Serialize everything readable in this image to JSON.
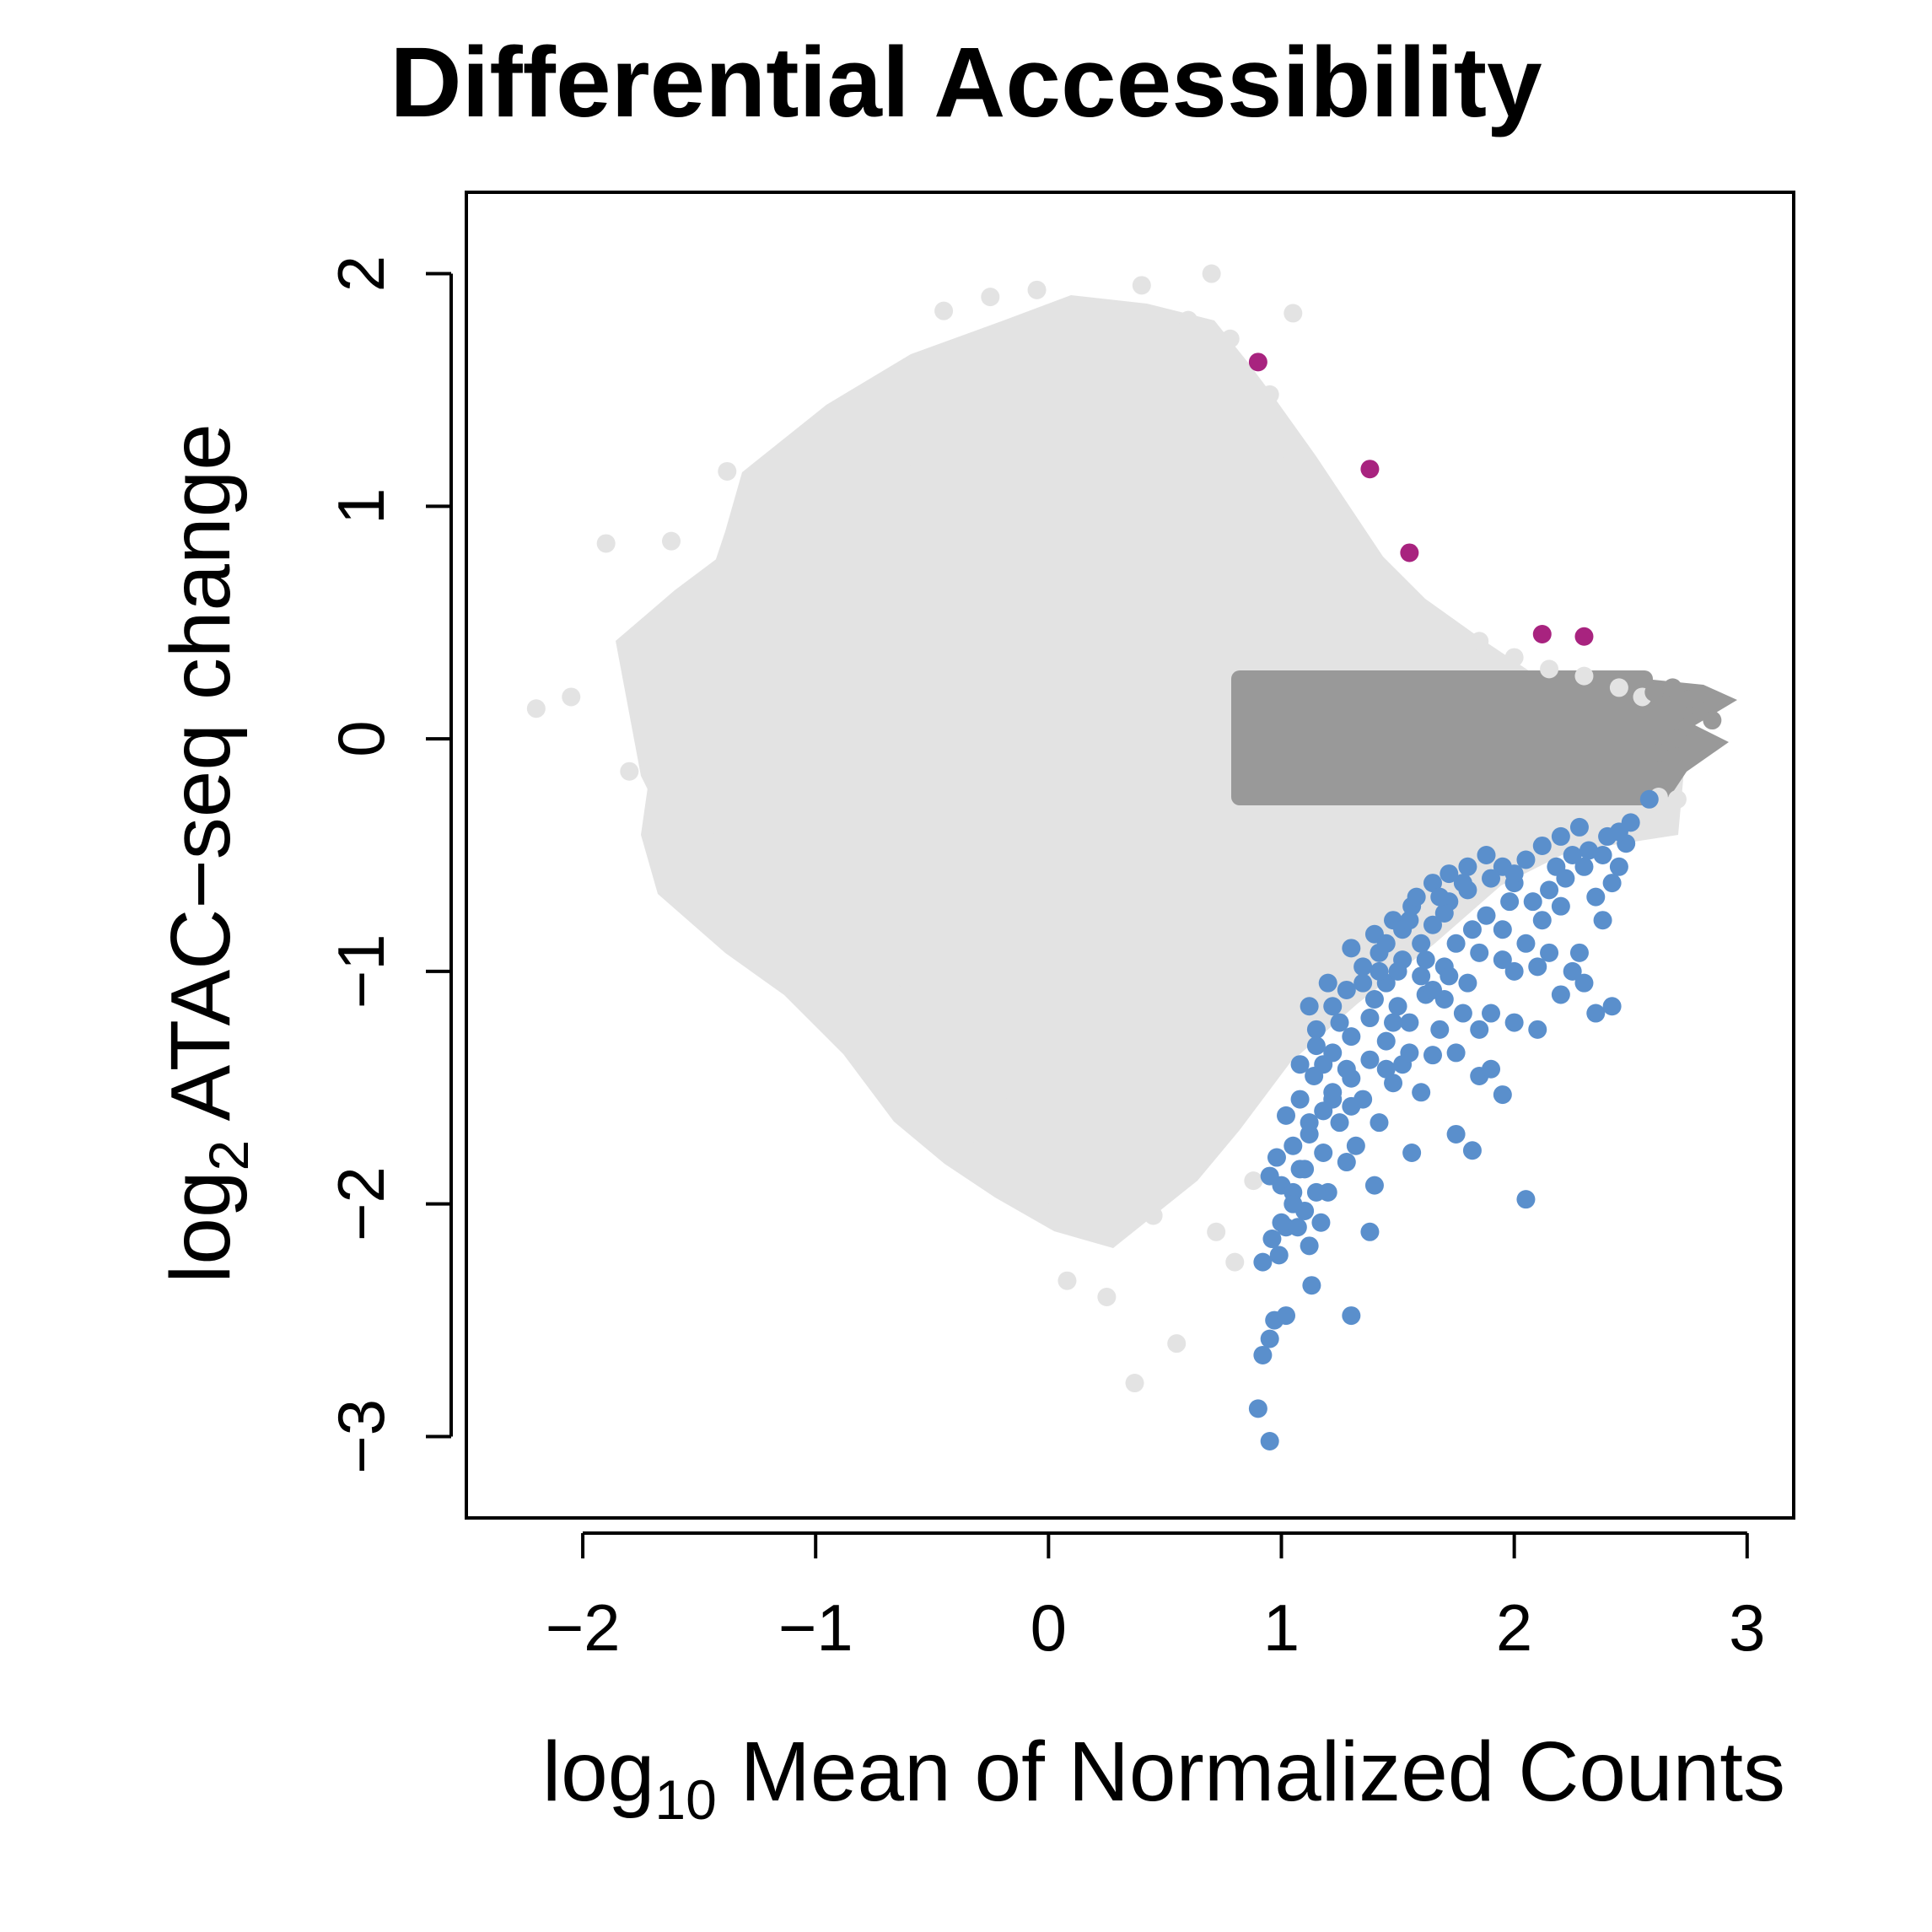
{
  "chart_data": {
    "type": "scatter",
    "title": "Differential Accessibility",
    "xlabel_prefix": "log",
    "xlabel_sub": "10",
    "xlabel_rest": " Mean of Normalized Counts",
    "ylabel_prefix": "log",
    "ylabel_sub": "2",
    "ylabel_rest": " ATAC−seq change",
    "xlim": [
      -2.5,
      3.2
    ],
    "ylim": [
      -3.35,
      2.35
    ],
    "xticks": [
      -2,
      -1,
      0,
      1,
      2,
      3
    ],
    "xtick_labels": [
      "−2",
      "−1",
      "0",
      "1",
      "2",
      "3"
    ],
    "yticks": [
      -3,
      -2,
      -1,
      0,
      1,
      2
    ],
    "ytick_labels": [
      "−3",
      "−2",
      "−1",
      "0",
      "1",
      "2"
    ],
    "grid": false,
    "colors": {
      "not_significant": "#e3e3e3",
      "dense_center": "#999999",
      "increased": "#a8237f",
      "decreased": "#5a8fcc"
    },
    "series": [
      {
        "key": "not_significant",
        "points": [
          [
            -2.2,
            0.13
          ],
          [
            -2.05,
            0.18
          ],
          [
            -1.9,
            0.84
          ],
          [
            -1.8,
            -0.14
          ],
          [
            -1.7,
            0.05
          ],
          [
            -1.62,
            0.85
          ],
          [
            -1.55,
            -0.2
          ],
          [
            -1.5,
            0.62
          ],
          [
            -1.45,
            -0.37
          ],
          [
            -1.38,
            1.15
          ],
          [
            -1.35,
            -0.48
          ],
          [
            -1.25,
            0.9
          ],
          [
            -1.2,
            -0.58
          ],
          [
            -1.12,
            1.12
          ],
          [
            -1.05,
            -0.8
          ],
          [
            -1.0,
            0.95
          ],
          [
            -0.9,
            -0.72
          ],
          [
            -0.85,
            1.3
          ],
          [
            -0.8,
            -1.0
          ],
          [
            -0.72,
            1.02
          ],
          [
            -0.65,
            -1.1
          ],
          [
            -0.58,
            1.14
          ],
          [
            -0.5,
            -1.25
          ],
          [
            -0.45,
            1.84
          ],
          [
            -0.4,
            -1.48
          ],
          [
            -0.35,
            1.3
          ],
          [
            -0.3,
            -1.7
          ],
          [
            -0.25,
            1.9
          ],
          [
            -0.2,
            -1.58
          ],
          [
            -0.12,
            1.65
          ],
          [
            -0.08,
            -1.88
          ],
          [
            -0.05,
            1.93
          ],
          [
            0.0,
            -1.96
          ],
          [
            0.02,
            1.72
          ],
          [
            0.08,
            -2.33
          ],
          [
            0.1,
            1.5
          ],
          [
            0.15,
            -1.82
          ],
          [
            0.2,
            1.7
          ],
          [
            0.25,
            -2.4
          ],
          [
            0.3,
            1.8
          ],
          [
            0.35,
            -2.02
          ],
          [
            0.4,
            1.95
          ],
          [
            0.45,
            -2.05
          ],
          [
            0.5,
            1.2
          ],
          [
            0.55,
            -2.6
          ],
          [
            0.6,
            1.8
          ],
          [
            0.62,
            -1.75
          ],
          [
            0.7,
            2.0
          ],
          [
            0.72,
            -2.12
          ],
          [
            0.78,
            1.72
          ],
          [
            0.8,
            -2.25
          ],
          [
            0.85,
            1.4
          ],
          [
            0.88,
            -1.9
          ],
          [
            0.95,
            1.48
          ],
          [
            1.0,
            1.25
          ],
          [
            1.05,
            1.83
          ],
          [
            1.1,
            1.05
          ],
          [
            1.2,
            0.88
          ],
          [
            1.3,
            0.62
          ],
          [
            1.4,
            0.76
          ],
          [
            1.55,
            0.55
          ],
          [
            1.7,
            0.47
          ],
          [
            1.85,
            0.42
          ],
          [
            2.0,
            0.35
          ],
          [
            2.15,
            0.3
          ],
          [
            2.3,
            0.27
          ],
          [
            2.45,
            0.22
          ],
          [
            2.55,
            0.18
          ],
          [
            2.62,
            -0.25
          ],
          [
            2.7,
            -0.26
          ],
          [
            0.37,
            -2.77
          ]
        ]
      },
      {
        "key": "dense_center",
        "points": [
          [
            2.6,
            0.2
          ],
          [
            2.68,
            0.22
          ],
          [
            2.75,
            0.17
          ],
          [
            2.8,
            0.12
          ],
          [
            2.85,
            0.08
          ],
          [
            2.72,
            0.05
          ],
          [
            2.62,
            -0.06
          ],
          [
            2.7,
            0.0
          ]
        ]
      },
      {
        "key": "increased",
        "points": [
          [
            0.9,
            1.62
          ],
          [
            1.38,
            1.16
          ],
          [
            1.55,
            0.8
          ],
          [
            2.12,
            0.45
          ],
          [
            2.3,
            0.44
          ]
        ]
      },
      {
        "key": "decreased",
        "points": [
          [
            0.95,
            -3.02
          ],
          [
            0.9,
            -2.88
          ],
          [
            0.92,
            -2.65
          ],
          [
            0.95,
            -2.58
          ],
          [
            0.97,
            -2.5
          ],
          [
            1.02,
            -2.48
          ],
          [
            0.92,
            -2.25
          ],
          [
            0.99,
            -2.22
          ],
          [
            0.96,
            -2.15
          ],
          [
            1.02,
            -2.1
          ],
          [
            1.07,
            -2.1
          ],
          [
            1.12,
            -2.18
          ],
          [
            1.13,
            -2.35
          ],
          [
            1.1,
            -2.03
          ],
          [
            1.17,
            -2.08
          ],
          [
            1.3,
            -2.48
          ],
          [
            1.0,
            -1.92
          ],
          [
            1.05,
            -1.95
          ],
          [
            0.95,
            -1.88
          ],
          [
            1.1,
            -1.85
          ],
          [
            1.2,
            -1.95
          ],
          [
            1.28,
            -1.82
          ],
          [
            1.4,
            -1.92
          ],
          [
            1.38,
            -2.12
          ],
          [
            1.05,
            -1.75
          ],
          [
            1.12,
            -1.7
          ],
          [
            1.18,
            -1.6
          ],
          [
            1.22,
            -1.52
          ],
          [
            1.3,
            -1.46
          ],
          [
            1.35,
            -1.55
          ],
          [
            1.48,
            -1.48
          ],
          [
            1.52,
            -1.4
          ],
          [
            1.56,
            -1.78
          ],
          [
            1.08,
            -1.55
          ],
          [
            1.14,
            -1.45
          ],
          [
            1.22,
            -1.35
          ],
          [
            1.3,
            -1.28
          ],
          [
            1.38,
            -1.2
          ],
          [
            1.45,
            -1.3
          ],
          [
            1.55,
            -1.22
          ],
          [
            1.65,
            -1.36
          ],
          [
            1.75,
            -1.35
          ],
          [
            1.85,
            -1.45
          ],
          [
            1.9,
            -1.42
          ],
          [
            1.15,
            -1.25
          ],
          [
            1.22,
            -1.15
          ],
          [
            1.28,
            -1.08
          ],
          [
            1.35,
            -0.98
          ],
          [
            1.45,
            -1.05
          ],
          [
            1.52,
            -0.95
          ],
          [
            1.6,
            -1.02
          ],
          [
            1.7,
            -1.12
          ],
          [
            1.8,
            -1.05
          ],
          [
            1.9,
            -1.18
          ],
          [
            2.0,
            -1.22
          ],
          [
            2.1,
            -1.25
          ],
          [
            2.2,
            -1.1
          ],
          [
            2.3,
            -1.05
          ],
          [
            2.35,
            -1.18
          ],
          [
            2.42,
            -1.15
          ],
          [
            1.3,
            -0.9
          ],
          [
            1.4,
            -0.84
          ],
          [
            1.48,
            -0.78
          ],
          [
            1.56,
            -0.72
          ],
          [
            1.65,
            -0.8
          ],
          [
            1.72,
            -0.7
          ],
          [
            1.8,
            -0.65
          ],
          [
            1.88,
            -0.76
          ],
          [
            1.95,
            -0.82
          ],
          [
            2.05,
            -0.88
          ],
          [
            2.12,
            -0.78
          ],
          [
            2.2,
            -0.72
          ],
          [
            2.28,
            -0.92
          ],
          [
            2.38,
            -0.78
          ],
          [
            2.42,
            -0.62
          ],
          [
            1.58,
            -0.68
          ],
          [
            1.65,
            -0.62
          ],
          [
            1.72,
            -0.58
          ],
          [
            1.8,
            -0.55
          ],
          [
            1.88,
            -0.5
          ],
          [
            1.95,
            -0.55
          ],
          [
            2.05,
            -0.52
          ],
          [
            2.12,
            -0.46
          ],
          [
            2.2,
            -0.42
          ],
          [
            2.28,
            -0.38
          ],
          [
            2.38,
            -0.5
          ],
          [
            2.45,
            -0.55
          ],
          [
            2.5,
            -0.36
          ],
          [
            2.58,
            -0.26
          ],
          [
            2.48,
            -0.45
          ],
          [
            1.75,
            -1.7
          ],
          [
            1.82,
            -1.77
          ],
          [
            2.05,
            -1.98
          ],
          [
            1.95,
            -1.53
          ],
          [
            1.7,
            -0.98
          ],
          [
            1.75,
            -0.88
          ],
          [
            1.85,
            -0.92
          ],
          [
            1.95,
            -0.95
          ],
          [
            2.0,
            -1.0
          ],
          [
            2.1,
            -0.98
          ],
          [
            1.68,
            -1.25
          ],
          [
            1.6,
            -1.52
          ],
          [
            1.42,
            -1.65
          ],
          [
            1.25,
            -1.65
          ],
          [
            1.32,
            -1.75
          ],
          [
            1.18,
            -1.78
          ],
          [
            1.05,
            -2.0
          ],
          [
            1.0,
            -2.08
          ],
          [
            0.98,
            -1.8
          ],
          [
            1.02,
            -1.62
          ],
          [
            1.08,
            -1.4
          ],
          [
            1.15,
            -1.32
          ],
          [
            1.25,
            -1.22
          ],
          [
            1.4,
            -1.12
          ],
          [
            1.5,
            -1.15
          ],
          [
            1.62,
            -1.1
          ],
          [
            1.72,
            -1.02
          ],
          [
            1.6,
            -0.88
          ],
          [
            1.52,
            -0.82
          ],
          [
            1.42,
            -0.92
          ],
          [
            1.35,
            -1.05
          ],
          [
            1.2,
            -1.05
          ],
          [
            1.12,
            -1.15
          ],
          [
            1.18,
            -1.4
          ],
          [
            1.3,
            -1.58
          ],
          [
            1.45,
            -1.42
          ],
          [
            2.22,
            -0.6
          ],
          [
            2.3,
            -0.55
          ],
          [
            2.15,
            -0.65
          ],
          [
            2.0,
            -0.62
          ],
          [
            1.9,
            -0.6
          ],
          [
            2.35,
            -0.68
          ],
          [
            1.65,
            -1.08
          ],
          [
            1.78,
            -1.18
          ],
          [
            1.85,
            -1.25
          ],
          [
            1.55,
            -1.35
          ],
          [
            1.48,
            -1.22
          ],
          [
            1.38,
            -1.38
          ],
          [
            1.28,
            -1.42
          ],
          [
            1.22,
            -1.55
          ],
          [
            1.12,
            -1.65
          ],
          [
            1.08,
            -1.85
          ],
          [
            1.15,
            -1.95
          ],
          [
            2.25,
            -1.0
          ],
          [
            2.15,
            -0.92
          ],
          [
            2.08,
            -0.7
          ],
          [
            1.98,
            -0.7
          ],
          [
            1.82,
            -0.82
          ],
          [
            1.7,
            -0.75
          ],
          [
            1.62,
            -0.95
          ],
          [
            1.5,
            -1.0
          ],
          [
            1.42,
            -1.0
          ],
          [
            1.45,
            -0.88
          ],
          [
            1.55,
            -0.78
          ],
          [
            1.68,
            -0.68
          ],
          [
            1.78,
            -0.62
          ],
          [
            2.4,
            -0.42
          ],
          [
            2.45,
            -0.4
          ],
          [
            2.32,
            -0.48
          ],
          [
            2.25,
            -0.5
          ],
          [
            2.18,
            -0.55
          ],
          [
            2.0,
            -0.58
          ]
        ]
      }
    ]
  }
}
